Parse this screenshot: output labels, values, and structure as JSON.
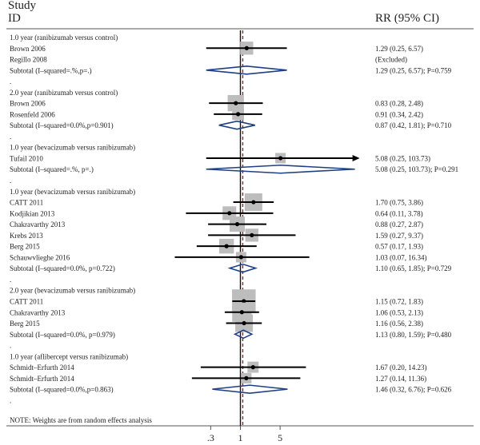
{
  "colors": {
    "diamond": "#1f3f85",
    "ref_line": "#111111",
    "overall_line": "#8b2a2a",
    "weight_box": "#bdbdbd",
    "ci_line": "#000000",
    "point": "#000000",
    "frame": "#555555"
  },
  "chart_data": {
    "type": "forest",
    "header": {
      "col1_line1": "Study",
      "col1_line2": "ID",
      "col2": "RR (95% CI)"
    },
    "x_scale": "log",
    "x_ticks": [
      {
        "value": 0.3,
        "label": ".3"
      },
      {
        "value": 1,
        "label": "1"
      },
      {
        "value": 5,
        "label": "5"
      }
    ],
    "xlim": [
      0.06,
      20
    ],
    "null_line": 1,
    "overall_dashed_line": 1.1,
    "note": "NOTE: Weights are from random effects analysis",
    "rows": [
      {
        "kind": "group",
        "label": "1.0 year (ranibizumab versus control)"
      },
      {
        "kind": "study",
        "label": "Brown 2006",
        "rr": 1.29,
        "lo": 0.25,
        "hi": 6.57,
        "weight": 0.55,
        "text": "1.29 (0.25, 6.57)"
      },
      {
        "kind": "study",
        "label": "Regillo 2008",
        "text": "(Excluded)"
      },
      {
        "kind": "subtotal",
        "label": "Subtotal (I–squared=.%,p=.)",
        "rr": 1.29,
        "lo": 0.25,
        "hi": 6.57,
        "text": "1.29 (0.25, 6.57); P=0.759"
      },
      {
        "kind": "blank",
        "label": "."
      },
      {
        "kind": "group",
        "label": "2.0 year (ranibizumab versus control)"
      },
      {
        "kind": "study",
        "label": "Brown 2006",
        "rr": 0.83,
        "lo": 0.28,
        "hi": 2.48,
        "weight": 0.85,
        "text": "0.83 (0.28, 2.48)"
      },
      {
        "kind": "study",
        "label": "Rosenfeld 2006",
        "rr": 0.91,
        "lo": 0.34,
        "hi": 2.42,
        "weight": 0.45,
        "text": "0.91 (0.34, 2.42)"
      },
      {
        "kind": "subtotal",
        "label": "Subtotal (I–squared=0.0%,p=0.901)",
        "rr": 0.87,
        "lo": 0.42,
        "hi": 1.81,
        "text": "0.87 (0.42, 1.81); P=0.710"
      },
      {
        "kind": "blank",
        "label": "."
      },
      {
        "kind": "group",
        "label": "1.0 year (bevacizumab versus ranibizumab)"
      },
      {
        "kind": "study",
        "label": "Tufail 2010",
        "rr": 5.08,
        "lo": 0.25,
        "hi": 103.73,
        "weight": 0.35,
        "arrow": true,
        "text": "5.08 (0.25, 103.73)"
      },
      {
        "kind": "subtotal",
        "label": "Subtotal (I–squared=.%, p=.)",
        "rr": 5.08,
        "lo": 0.25,
        "hi": 103.73,
        "arrow": true,
        "text": "5.08 (0.25, 103.73); P=0.291"
      },
      {
        "kind": "blank",
        "label": "."
      },
      {
        "kind": "group",
        "label": "1.0 year (bevacizumab versus ranibizumab)"
      },
      {
        "kind": "study",
        "label": "CATT 2011",
        "rr": 1.7,
        "lo": 0.75,
        "hi": 3.86,
        "weight": 1.0,
        "text": "1.70 (0.75, 3.86)"
      },
      {
        "kind": "study",
        "label": "Kodjikian 2013",
        "rr": 0.64,
        "lo": 0.11,
        "hi": 3.78,
        "weight": 0.6,
        "text": "0.64 (0.11, 3.78)"
      },
      {
        "kind": "study",
        "label": "Chakravarthy 2013",
        "rr": 0.88,
        "lo": 0.27,
        "hi": 2.87,
        "weight": 0.75,
        "text": "0.88 (0.27, 2.87)"
      },
      {
        "kind": "study",
        "label": "Krebs 2013",
        "rr": 1.59,
        "lo": 0.27,
        "hi": 9.37,
        "weight": 0.55,
        "text": "1.59 (0.27, 9.37)"
      },
      {
        "kind": "study",
        "label": "Berg 2015",
        "rr": 0.57,
        "lo": 0.17,
        "hi": 1.93,
        "weight": 0.7,
        "text": "0.57 (0.17, 1.93)"
      },
      {
        "kind": "study",
        "label": "Schauwvlieghe 2016",
        "rr": 1.03,
        "lo": 0.07,
        "hi": 16.34,
        "weight": 0.35,
        "text": "1.03 (0.07, 16.34)"
      },
      {
        "kind": "subtotal",
        "label": "Subtotal (I–squared=0.0%, p=0.722)",
        "rr": 1.1,
        "lo": 0.65,
        "hi": 1.85,
        "text": "1.10 (0.65, 1.85); P=0.729"
      },
      {
        "kind": "blank",
        "label": "."
      },
      {
        "kind": "group",
        "label": "2.0 year (bevacizumab versus ranibizumab)"
      },
      {
        "kind": "study",
        "label": "CATT 2011",
        "rr": 1.15,
        "lo": 0.72,
        "hi": 1.83,
        "weight": 1.8,
        "text": "1.15 (0.72, 1.83)"
      },
      {
        "kind": "study",
        "label": "Chakravarthy 2013",
        "rr": 1.06,
        "lo": 0.53,
        "hi": 2.13,
        "weight": 1.2,
        "text": "1.06 (0.53, 2.13)"
      },
      {
        "kind": "study",
        "label": "Berg 2015",
        "rr": 1.16,
        "lo": 0.56,
        "hi": 2.38,
        "weight": 1.0,
        "text": "1.16 (0.56, 2.38)"
      },
      {
        "kind": "subtotal",
        "label": "Subtotal (I–squared=0.0%, p=0.979)",
        "rr": 1.13,
        "lo": 0.8,
        "hi": 1.59,
        "text": "1.13 (0.80, 1.59); P=0.480"
      },
      {
        "kind": "blank",
        "label": "."
      },
      {
        "kind": "group",
        "label": "1.0 year (aflibercept versus ranibizumab)"
      },
      {
        "kind": "study",
        "label": "Schmidt–Erfurth 2014",
        "rr": 1.67,
        "lo": 0.2,
        "hi": 14.23,
        "weight": 0.4,
        "text": "1.67 (0.20, 14.23)"
      },
      {
        "kind": "study",
        "label": "Schmidt–Erfurth 2014",
        "rr": 1.27,
        "lo": 0.14,
        "hi": 11.36,
        "weight": 0.35,
        "text": "1.27 (0.14, 11.36)"
      },
      {
        "kind": "subtotal",
        "label": "Subtotal (I–squared=0.0%,p=0.863)",
        "rr": 1.46,
        "lo": 0.32,
        "hi": 6.76,
        "text": "1.46 (0.32, 6.76); P=0.626"
      },
      {
        "kind": "blank",
        "label": "."
      }
    ]
  }
}
